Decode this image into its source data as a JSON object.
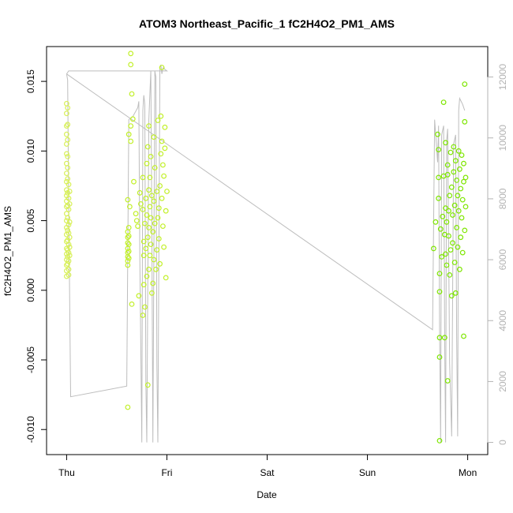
{
  "chart_data": {
    "type": "scatter",
    "title": "ATOM3 Northeast_Pacific_1 fC2H4O2_PM1_AMS",
    "xlabel": "Date",
    "ylabel": "fC2H4O2_PM1_AMS",
    "x_ticks": [
      "Thu",
      "Fri",
      "Sat",
      "Sun",
      "Mon"
    ],
    "x_tick_pos": [
      0,
      1,
      2,
      3,
      4
    ],
    "xlim": [
      -0.2,
      4.2
    ],
    "ylim": [
      -0.0118,
      0.0175
    ],
    "y_ticks": [
      -0.01,
      -0.005,
      0.0,
      0.005,
      0.01,
      0.015
    ],
    "y_tick_labels": [
      "-0.010",
      "-0.005",
      "0.000",
      "0.005",
      "0.010",
      "0.015"
    ],
    "y2lim": [
      -400,
      13000
    ],
    "y2_ticks": [
      0,
      2000,
      4000,
      6000,
      8000,
      10000,
      12000
    ],
    "y2_tick_labels": [
      "0",
      "2000",
      "4000",
      "6000",
      "8000",
      "10000",
      "12000"
    ],
    "grid": false,
    "legend": "none",
    "colors": {
      "thu_points": "#d8f05a",
      "fri_points": "#c2f02a",
      "mon_points": "#7ee600",
      "altitude_line": "#bdbdbd",
      "axis": "#000000",
      "right_axis": "#b3b3b3"
    },
    "series": [
      {
        "kind": "points",
        "color_key": "thu_points",
        "points": [
          [
            0.0,
            0.0134
          ],
          [
            0.0,
            0.0127
          ],
          [
            0.0,
            0.0118
          ],
          [
            0.0,
            0.0112
          ],
          [
            0.0,
            0.0105
          ],
          [
            0.0,
            0.0098
          ],
          [
            0.0,
            0.0091
          ],
          [
            0.0,
            0.0084
          ],
          [
            0.0,
            0.0078
          ],
          [
            0.0,
            0.0072
          ],
          [
            0.0,
            0.0068
          ],
          [
            0.0,
            0.0064
          ],
          [
            0.0,
            0.006
          ],
          [
            0.0,
            0.0055
          ],
          [
            0.0,
            0.005
          ],
          [
            0.0,
            0.0045
          ],
          [
            0.0,
            0.004
          ],
          [
            0.0,
            0.0035
          ],
          [
            0.0,
            0.003
          ],
          [
            0.0,
            0.0026
          ],
          [
            0.0,
            0.0022
          ],
          [
            0.0,
            0.0018
          ],
          [
            0.0,
            0.0014
          ],
          [
            0.0,
            0.001
          ],
          [
            0.01,
            0.0131
          ],
          [
            0.01,
            0.0119
          ],
          [
            0.01,
            0.0108
          ],
          [
            0.01,
            0.0096
          ],
          [
            0.01,
            0.0088
          ],
          [
            0.01,
            0.008
          ],
          [
            0.01,
            0.007
          ],
          [
            0.01,
            0.0061
          ],
          [
            0.01,
            0.0052
          ],
          [
            0.01,
            0.0043
          ],
          [
            0.01,
            0.0036
          ],
          [
            0.01,
            0.0029
          ],
          [
            0.01,
            0.0024
          ],
          [
            0.01,
            0.0019
          ],
          [
            0.02,
            0.0076
          ],
          [
            0.02,
            0.0066
          ],
          [
            0.02,
            0.0058
          ],
          [
            0.02,
            0.0047
          ],
          [
            0.02,
            0.0041
          ],
          [
            0.02,
            0.0033
          ],
          [
            0.02,
            0.0027
          ],
          [
            0.02,
            0.0021
          ],
          [
            0.02,
            0.0015
          ],
          [
            0.02,
            0.0011
          ],
          [
            0.03,
            0.0071
          ],
          [
            0.03,
            0.0062
          ],
          [
            0.03,
            0.0049
          ],
          [
            0.03,
            0.0038
          ],
          [
            0.03,
            0.0031
          ],
          [
            0.03,
            0.0025
          ]
        ]
      },
      {
        "kind": "points",
        "color_key": "fri_points",
        "points": [
          [
            0.61,
            -0.0084
          ],
          [
            0.61,
            0.0065
          ],
          [
            0.61,
            0.0042
          ],
          [
            0.61,
            0.0038
          ],
          [
            0.61,
            0.0034
          ],
          [
            0.61,
            0.003
          ],
          [
            0.61,
            0.0027
          ],
          [
            0.61,
            0.0024
          ],
          [
            0.61,
            0.0021
          ],
          [
            0.61,
            0.0018
          ],
          [
            0.62,
            0.0112
          ],
          [
            0.62,
            0.0045
          ],
          [
            0.62,
            0.0039
          ],
          [
            0.62,
            0.0033
          ],
          [
            0.62,
            0.0028
          ],
          [
            0.62,
            0.0023
          ],
          [
            0.63,
            0.006
          ],
          [
            0.64,
            0.017
          ],
          [
            0.64,
            0.0162
          ],
          [
            0.64,
            0.0118
          ],
          [
            0.64,
            0.0107
          ],
          [
            0.65,
            0.0141
          ],
          [
            0.65,
            -0.001
          ],
          [
            0.66,
            0.0123
          ],
          [
            0.67,
            0.0078
          ],
          [
            0.69,
            0.0055
          ],
          [
            0.7,
            0.005
          ],
          [
            0.71,
            0.0046
          ],
          [
            0.72,
            -0.0004
          ],
          [
            0.73,
            0.007
          ],
          [
            0.74,
            0.0062
          ],
          [
            0.76,
            -0.0018
          ],
          [
            0.76,
            0.0081
          ],
          [
            0.76,
            0.0058
          ],
          [
            0.77,
            0.0035
          ],
          [
            0.77,
            0.0025
          ],
          [
            0.77,
            0.0004
          ],
          [
            0.78,
            -0.0012
          ],
          [
            0.78,
            0.0048
          ],
          [
            0.79,
            0.0066
          ],
          [
            0.79,
            0.003
          ],
          [
            0.8,
            0.0091
          ],
          [
            0.8,
            0.0054
          ],
          [
            0.8,
            0.001
          ],
          [
            0.81,
            0.0103
          ],
          [
            0.81,
            0.0038
          ],
          [
            0.81,
            -0.0068
          ],
          [
            0.82,
            0.0118
          ],
          [
            0.82,
            0.0072
          ],
          [
            0.82,
            0.0045
          ],
          [
            0.82,
            0.0015
          ],
          [
            0.83,
            0.0081
          ],
          [
            0.83,
            0.006
          ],
          [
            0.83,
            0.0025
          ],
          [
            0.84,
            0.0096
          ],
          [
            0.84,
            0.0052
          ],
          [
            0.84,
            0.0033
          ],
          [
            0.85,
            -0.0002
          ],
          [
            0.85,
            0.0068
          ],
          [
            0.86,
            0.0042
          ],
          [
            0.86,
            0.0005
          ],
          [
            0.87,
            0.011
          ],
          [
            0.87,
            0.0064
          ],
          [
            0.87,
            0.0022
          ],
          [
            0.88,
            0.0048
          ],
          [
            0.88,
            0.0088
          ],
          [
            0.89,
            0.0015
          ],
          [
            0.9,
            0.0029
          ],
          [
            0.9,
            0.0071
          ],
          [
            0.91,
            0.0052
          ],
          [
            0.91,
            0.0122
          ],
          [
            0.92,
            0.0059
          ],
          [
            0.92,
            0.0037
          ],
          [
            0.93,
            0.0075
          ],
          [
            0.93,
            0.0019
          ],
          [
            0.94,
            0.0098
          ],
          [
            0.94,
            0.0125
          ],
          [
            0.95,
            0.016
          ],
          [
            0.95,
            0.0107
          ],
          [
            0.95,
            0.0066
          ],
          [
            0.96,
            0.0046
          ],
          [
            0.96,
            0.009
          ],
          [
            0.97,
            0.0082
          ],
          [
            0.97,
            0.0031
          ],
          [
            0.98,
            0.0102
          ],
          [
            0.98,
            0.0117
          ],
          [
            0.99,
            0.0057
          ],
          [
            0.99,
            0.0009
          ],
          [
            1.0,
            0.0071
          ]
        ]
      },
      {
        "kind": "points",
        "color_key": "mon_points",
        "points": [
          [
            3.66,
            0.003
          ],
          [
            3.68,
            0.0049
          ],
          [
            3.7,
            0.0112
          ],
          [
            3.71,
            0.0101
          ],
          [
            3.71,
            0.0081
          ],
          [
            3.71,
            0.0066
          ],
          [
            3.72,
            -0.0108
          ],
          [
            3.72,
            -0.0034
          ],
          [
            3.72,
            -0.0048
          ],
          [
            3.72,
            0.0012
          ],
          [
            3.72,
            -0.0001
          ],
          [
            3.73,
            0.0044
          ],
          [
            3.74,
            0.0024
          ],
          [
            3.75,
            0.0053
          ],
          [
            3.76,
            0.0135
          ],
          [
            3.76,
            0.0082
          ],
          [
            3.77,
            0.004
          ],
          [
            3.77,
            -0.0034
          ],
          [
            3.78,
            0.0106
          ],
          [
            3.78,
            0.0059
          ],
          [
            3.78,
            0.0026
          ],
          [
            3.79,
            0.0018
          ],
          [
            3.79,
            0.0049
          ],
          [
            3.8,
            0.0083
          ],
          [
            3.8,
            -0.0065
          ],
          [
            3.8,
            0.009
          ],
          [
            3.81,
            0.0057
          ],
          [
            3.81,
            0.0039
          ],
          [
            3.82,
            0.0011
          ],
          [
            3.82,
            0.0068
          ],
          [
            3.83,
            0.0099
          ],
          [
            3.83,
            0.0029
          ],
          [
            3.84,
            0.0074
          ],
          [
            3.84,
            -0.0004
          ],
          [
            3.85,
            0.0054
          ],
          [
            3.85,
            0.0034
          ],
          [
            3.86,
            0.0103
          ],
          [
            3.86,
            0.0085
          ],
          [
            3.87,
            0.0061
          ],
          [
            3.87,
            0.002
          ],
          [
            3.88,
            -0.0002
          ],
          [
            3.88,
            0.0093
          ],
          [
            3.89,
            0.0079
          ],
          [
            3.89,
            0.0045
          ],
          [
            3.9,
            0.0031
          ],
          [
            3.9,
            0.0068
          ],
          [
            3.91,
            0.01
          ],
          [
            3.91,
            0.0057
          ],
          [
            3.92,
            0.0087
          ],
          [
            3.92,
            0.0015
          ],
          [
            3.93,
            0.0073
          ],
          [
            3.93,
            0.0038
          ],
          [
            3.94,
            0.0097
          ],
          [
            3.94,
            0.0052
          ],
          [
            3.95,
            0.0065
          ],
          [
            3.95,
            0.0027
          ],
          [
            3.96,
            0.0091
          ],
          [
            3.96,
            0.0078
          ],
          [
            3.96,
            -0.0033
          ],
          [
            3.97,
            0.0148
          ],
          [
            3.97,
            0.0121
          ],
          [
            3.97,
            0.0043
          ],
          [
            3.98,
            0.006
          ],
          [
            3.98,
            0.0081
          ]
        ]
      },
      {
        "kind": "line",
        "axis": "right",
        "color_key": "altitude_line",
        "points": [
          [
            0.0,
            12100
          ],
          [
            0.01,
            11900
          ],
          [
            0.02,
            8000
          ],
          [
            0.04,
            1500
          ],
          [
            0.6,
            1850
          ],
          [
            0.62,
            10600
          ],
          [
            0.66,
            10700
          ],
          [
            0.71,
            11000
          ],
          [
            0.72,
            11200
          ],
          [
            0.73,
            6000
          ],
          [
            0.75,
            0
          ],
          [
            0.76,
            10900
          ],
          [
            0.77,
            11400
          ],
          [
            0.78,
            11100
          ],
          [
            0.79,
            2000
          ],
          [
            0.8,
            0
          ],
          [
            0.82,
            10600
          ],
          [
            0.84,
            12200
          ],
          [
            0.85,
            7000
          ],
          [
            0.86,
            0
          ],
          [
            0.88,
            12200
          ],
          [
            0.89,
            12000
          ],
          [
            0.9,
            2500
          ],
          [
            0.91,
            0
          ],
          [
            0.93,
            12300
          ],
          [
            0.94,
            12400
          ],
          [
            0.95,
            12100
          ],
          [
            0.96,
            12300
          ],
          [
            0.97,
            12300
          ],
          [
            0.98,
            12250
          ],
          [
            1.0,
            12200
          ],
          [
            0.02,
            12200
          ],
          [
            0.0,
            12100
          ],
          [
            3.65,
            3700
          ],
          [
            3.67,
            10600
          ],
          [
            3.7,
            9200
          ],
          [
            3.71,
            10400
          ],
          [
            3.72,
            3700
          ],
          [
            3.73,
            0
          ],
          [
            3.74,
            10100
          ],
          [
            3.76,
            10400
          ],
          [
            3.77,
            3500
          ],
          [
            3.78,
            0
          ],
          [
            3.79,
            9900
          ],
          [
            3.8,
            10300
          ],
          [
            3.82,
            2600
          ],
          [
            3.84,
            200
          ],
          [
            3.86,
            9800
          ],
          [
            3.88,
            10100
          ],
          [
            3.89,
            3500
          ],
          [
            3.9,
            200
          ],
          [
            3.91,
            10900
          ],
          [
            3.92,
            11300
          ],
          [
            3.95,
            11100
          ],
          [
            3.97,
            10900
          ]
        ]
      }
    ]
  }
}
